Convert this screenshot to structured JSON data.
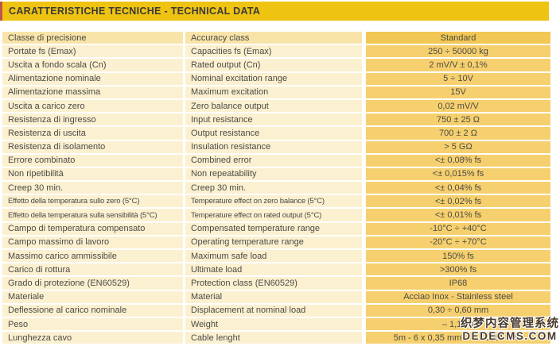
{
  "title": "CARATTERISTICHE TECNICHE - TECHNICAL DATA",
  "colors": {
    "title_bar": "#efc312",
    "accent_red": "#c0524e",
    "label_bg": "#fbf0d0",
    "label_header_bg": "#f8e3a9",
    "value_bg": "#f6d06e",
    "value_header_bg": "#f2c754",
    "text": "#4c4a45"
  },
  "table": {
    "header": {
      "it": "Classe di precisione",
      "en": "Accuracy class",
      "value": "Standard"
    },
    "rows": [
      {
        "it": "Portate fs (Emax)",
        "en": "Capacities fs (Emax)",
        "value": "250 ÷ 50000 kg"
      },
      {
        "it": "Uscita a fondo scala (Cn)",
        "en": "Rated output (Cn)",
        "value": "2 mV/V ± 0,1%"
      },
      {
        "it": "Alimentazione nominale",
        "en": "Nominal excitation range",
        "value": "5 ÷ 10V"
      },
      {
        "it": "Alimentazione massima",
        "en": "Maximum excitation",
        "value": "15V"
      },
      {
        "it": "Uscita a carico zero",
        "en": "Zero balance output",
        "value": "0,02 mV/V"
      },
      {
        "it": "Resistenza di ingresso",
        "en": "Input resistance",
        "value": "750 ± 25 Ω"
      },
      {
        "it": "Resistenza di uscita",
        "en": "Output resistance",
        "value": "700 ± 2 Ω"
      },
      {
        "it": "Resistenza di isolamento",
        "en": "Insulation resistance",
        "value": "> 5 GΩ"
      },
      {
        "it": "Errore combinato",
        "en": "Combined error",
        "value": "<± 0,08% fs"
      },
      {
        "it": "Non ripetibilità",
        "en": "Non repeatability",
        "value": "<± 0,015% fs"
      },
      {
        "it": "Creep 30 min.",
        "en": "Creep 30 min.",
        "value": "<± 0,04% fs"
      },
      {
        "it": "Effetto della temperatura sullo zero (5°C)",
        "en": "Temperature effect on zero balance (5°C)",
        "value": "<± 0,02% fs"
      },
      {
        "it": "Effetto della temperatura sulla sensibilità (5°C)",
        "en": "Temperature effect on rated output (5°C)",
        "value": "<± 0,01% fs"
      },
      {
        "it": "Campo di temperatura compensato",
        "en": "Compensated temperature range",
        "value": "-10°C ÷ +40°C"
      },
      {
        "it": "Campo massimo di lavoro",
        "en": "Operating temperature range",
        "value": "-20°C ÷ +70°C"
      },
      {
        "it": "Massimo carico ammissibile",
        "en": "Maximum safe load",
        "value": "150% fs"
      },
      {
        "it": "Carico di rottura",
        "en": "Ultimate load",
        "value": ">300% fs"
      },
      {
        "it": "Grado di protezione (EN60529)",
        "en": "Protection class (EN60529)",
        "value": "IP68"
      },
      {
        "it": "Materiale",
        "en": "Material",
        "value": "Acciao Inox - Stainless steel"
      },
      {
        "it": "Deflessione al carico nominale",
        "en": "Displacement at nominal load",
        "value": "0,30 ÷ 0,60 mm"
      },
      {
        "it": "Peso",
        "en": "Weight",
        "value": "– 1,1 - 4"
      },
      {
        "it": "Lunghezza cavo",
        "en": "Cable lenght",
        "value": "5m - 6 x 0,35 mm² / 6 x 0,14 mm²"
      }
    ]
  },
  "watermark": {
    "line1": "织梦内容管理系统",
    "line2": "DEDECMS.COM"
  }
}
